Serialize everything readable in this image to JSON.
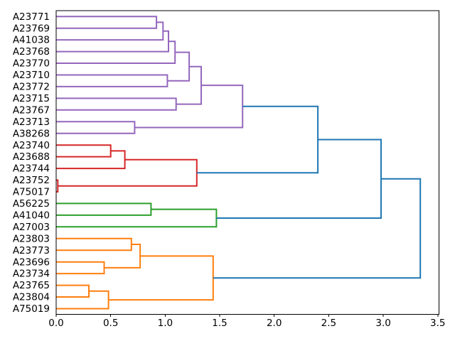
{
  "chart_data": {
    "type": "dendrogram",
    "title": "",
    "xlabel": "",
    "ylabel": "",
    "orientation": "leaves-left-root-right",
    "grid": false,
    "legend": null,
    "xlim": [
      0,
      3.51
    ],
    "x_ticks": [
      0.0,
      0.5,
      1.0,
      1.5,
      2.0,
      2.5,
      3.0,
      3.5
    ],
    "x_tick_labels": [
      "0.0",
      "0.5",
      "1.0",
      "1.5",
      "2.0",
      "2.5",
      "3.0",
      "3.5"
    ],
    "leaves": [
      "A23771",
      "A23769",
      "A41038",
      "A23768",
      "A23770",
      "A23710",
      "A23772",
      "A23715",
      "A23767",
      "A23713",
      "A38268",
      "A23740",
      "A23688",
      "A23744",
      "A23752",
      "A75017",
      "A56225",
      "A41040",
      "A27003",
      "A23803",
      "A23773",
      "A23696",
      "A23734",
      "A23765",
      "A23804",
      "A75019"
    ],
    "colors": {
      "blue": "#1f77b4",
      "orange": "#ff7f0e",
      "green": "#2ca02c",
      "red": "#d62728",
      "purple": "#9467bd",
      "axis": "#000000",
      "background": "#ffffff"
    },
    "tree": {
      "h": 3.34,
      "color": "blue",
      "children": [
        {
          "h": 2.98,
          "color": "blue",
          "children": [
            {
              "h": 2.4,
              "color": "blue",
              "children": [
                {
                  "h": 1.71,
                  "color": "purple",
                  "children": [
                    {
                      "h": 1.33,
                      "color": "purple",
                      "children": [
                        {
                          "h": 1.22,
                          "color": "purple",
                          "children": [
                            {
                              "h": 1.09,
                              "color": "purple",
                              "children": [
                                {
                                  "h": 1.03,
                                  "color": "purple",
                                  "children": [
                                    {
                                      "h": 0.98,
                                      "color": "purple",
                                      "children": [
                                        {
                                          "h": 0.92,
                                          "color": "purple",
                                          "children": [
                                            {
                                              "leaf": "A23771"
                                            },
                                            {
                                              "leaf": "A23769"
                                            }
                                          ]
                                        },
                                        {
                                          "leaf": "A41038"
                                        }
                                      ]
                                    },
                                    {
                                      "leaf": "A23768"
                                    }
                                  ]
                                },
                                {
                                  "leaf": "A23770"
                                }
                              ]
                            },
                            {
                              "h": 1.02,
                              "color": "purple",
                              "children": [
                                {
                                  "leaf": "A23710"
                                },
                                {
                                  "leaf": "A23772"
                                }
                              ]
                            }
                          ]
                        },
                        {
                          "h": 1.1,
                          "color": "purple",
                          "children": [
                            {
                              "leaf": "A23715"
                            },
                            {
                              "leaf": "A23767"
                            }
                          ]
                        }
                      ]
                    },
                    {
                      "h": 0.72,
                      "color": "purple",
                      "children": [
                        {
                          "leaf": "A23713"
                        },
                        {
                          "leaf": "A38268"
                        }
                      ]
                    }
                  ]
                },
                {
                  "h": 1.29,
                  "color": "red",
                  "children": [
                    {
                      "h": 0.63,
                      "color": "red",
                      "children": [
                        {
                          "h": 0.5,
                          "color": "red",
                          "children": [
                            {
                              "leaf": "A23740"
                            },
                            {
                              "leaf": "A23688"
                            }
                          ]
                        },
                        {
                          "leaf": "A23744"
                        }
                      ]
                    },
                    {
                      "h": 0.015,
                      "color": "red",
                      "children": [
                        {
                          "leaf": "A23752"
                        },
                        {
                          "leaf": "A75017"
                        }
                      ]
                    }
                  ]
                }
              ]
            },
            {
              "h": 1.47,
              "color": "green",
              "children": [
                {
                  "h": 0.87,
                  "color": "green",
                  "children": [
                    {
                      "leaf": "A56225"
                    },
                    {
                      "leaf": "A41040"
                    }
                  ]
                },
                {
                  "leaf": "A27003"
                }
              ]
            }
          ]
        },
        {
          "h": 1.44,
          "color": "orange",
          "children": [
            {
              "h": 0.77,
              "color": "orange",
              "children": [
                {
                  "h": 0.69,
                  "color": "orange",
                  "children": [
                    {
                      "leaf": "A23803"
                    },
                    {
                      "leaf": "A23773"
                    }
                  ]
                },
                {
                  "h": 0.44,
                  "color": "orange",
                  "children": [
                    {
                      "leaf": "A23696"
                    },
                    {
                      "leaf": "A23734"
                    }
                  ]
                }
              ]
            },
            {
              "h": 0.48,
              "color": "orange",
              "children": [
                {
                  "h": 0.3,
                  "color": "orange",
                  "children": [
                    {
                      "leaf": "A23765"
                    },
                    {
                      "leaf": "A23804"
                    }
                  ]
                },
                {
                  "leaf": "A75019"
                }
              ]
            }
          ]
        }
      ]
    }
  }
}
